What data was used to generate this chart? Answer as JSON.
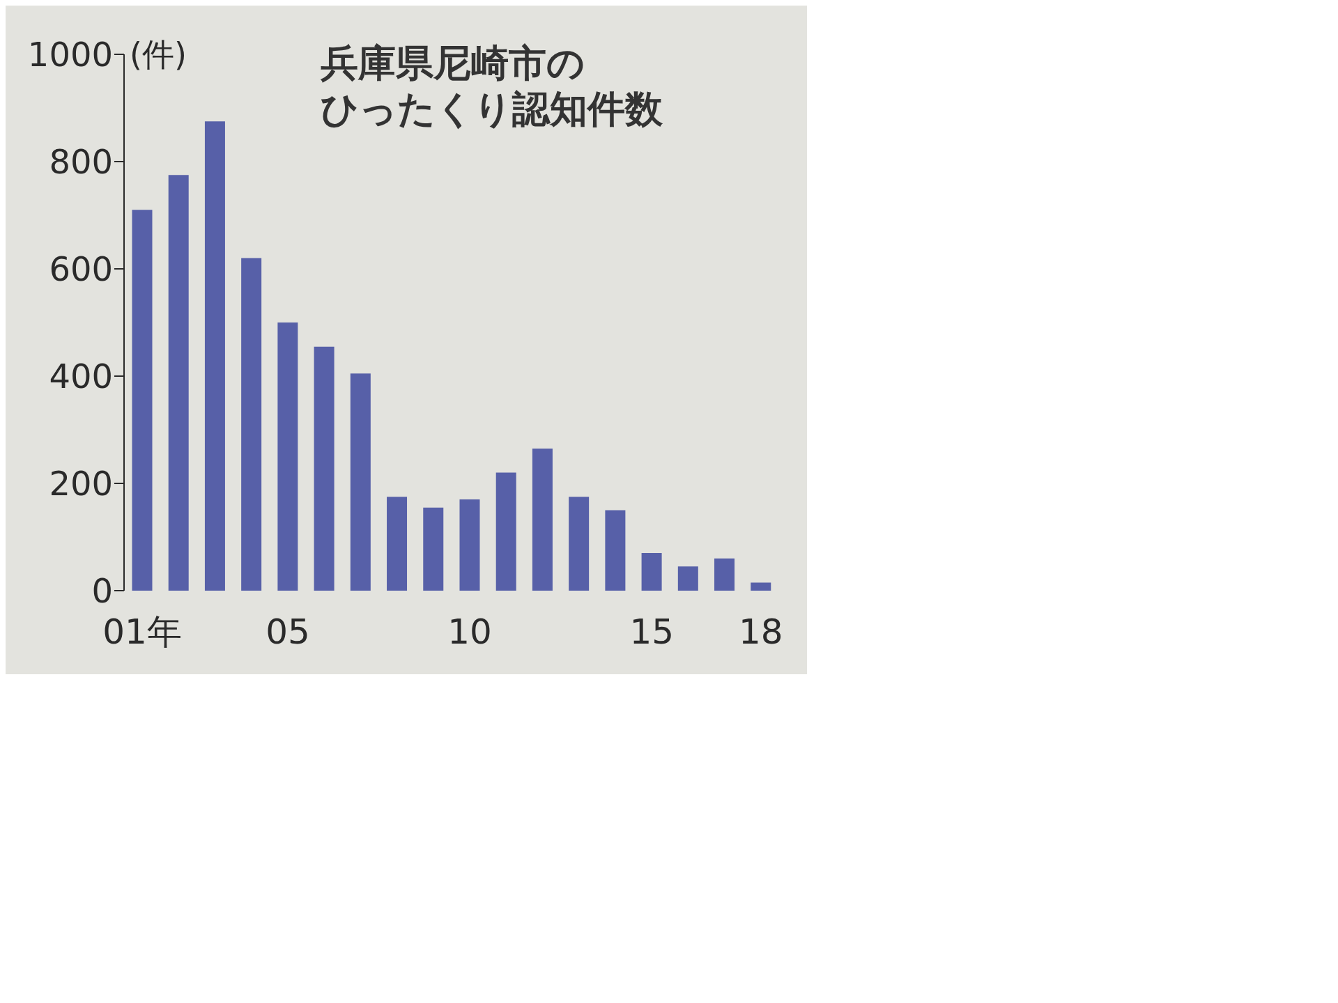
{
  "chart_data": {
    "type": "bar",
    "title": "兵庫県尼崎市のひったくり認知件数",
    "ylabel": "(件)",
    "categories": [
      "01年",
      null,
      null,
      null,
      "05",
      null,
      null,
      null,
      null,
      "10",
      null,
      null,
      null,
      null,
      "15",
      null,
      null,
      "18"
    ],
    "values": [
      710,
      775,
      875,
      620,
      500,
      455,
      405,
      175,
      155,
      170,
      220,
      265,
      175,
      150,
      70,
      45,
      60,
      15
    ],
    "color": "#5760a8",
    "ylim": [
      0,
      1000
    ],
    "yticks": [
      0,
      200,
      400,
      600,
      800,
      1000
    ]
  }
}
